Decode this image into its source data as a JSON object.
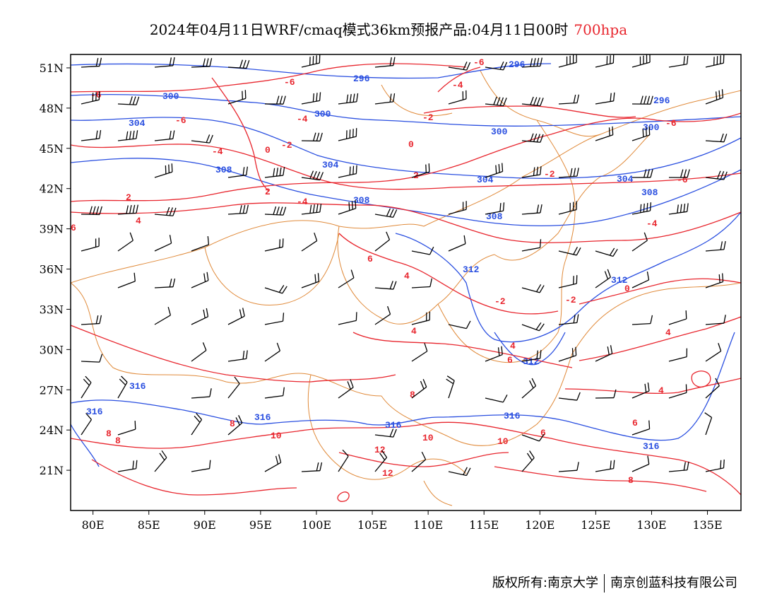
{
  "title": {
    "main": "2024年04月11日WRF/cmaq模式36km预报产品:04月11日00时",
    "level": "700hpa"
  },
  "colors": {
    "height_contour": "#2a4fe0",
    "temperature_contour": "#e8262e",
    "boundary": "#e08a3a",
    "wind_barb": "#000000",
    "level_text": "#e8262e"
  },
  "axes": {
    "lat_ticks": [
      "51N",
      "48N",
      "45N",
      "42N",
      "39N",
      "36N",
      "33N",
      "30N",
      "27N",
      "24N",
      "21N"
    ],
    "lon_ticks": [
      "80E",
      "85E",
      "90E",
      "95E",
      "100E",
      "105E",
      "110E",
      "115E",
      "120E",
      "125E",
      "130E",
      "135E"
    ],
    "lat_values": [
      51,
      48,
      45,
      42,
      39,
      36,
      33,
      30,
      27,
      24,
      21
    ],
    "lon_values": [
      80,
      85,
      90,
      95,
      100,
      105,
      110,
      115,
      120,
      125,
      130,
      135
    ],
    "lon_range": [
      78,
      138
    ],
    "lat_range": [
      18,
      52
    ]
  },
  "height_contour_labels": [
    "296",
    "300",
    "304",
    "308",
    "312",
    "316"
  ],
  "temperature_contour_labels": [
    "-6",
    "-4",
    "-2",
    "0",
    "2",
    "4",
    "6",
    "8",
    "10",
    "12"
  ],
  "footer": {
    "copyright": "版权所有:南京大学",
    "company": "南京创蓝科技有限公司"
  }
}
